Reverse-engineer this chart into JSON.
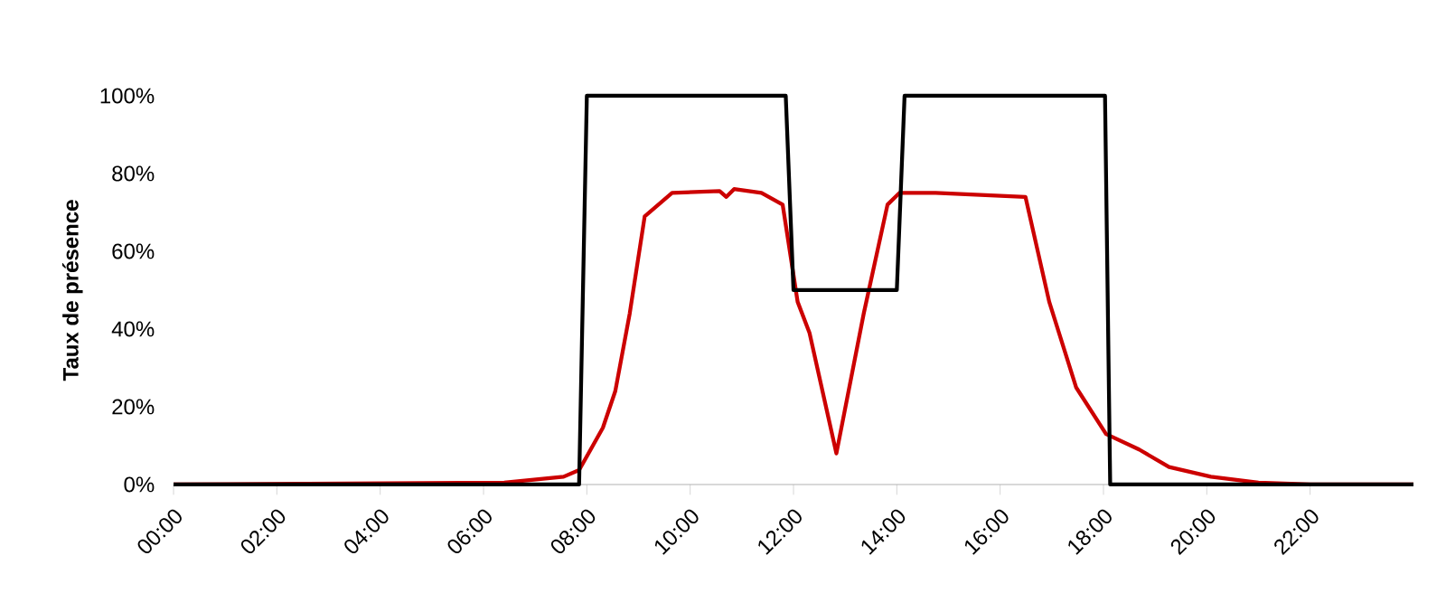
{
  "chart_data": {
    "type": "line",
    "ylabel": "Taux de présence",
    "xlim": [
      0,
      24
    ],
    "xticks": [
      {
        "value": 0,
        "label": "00:00"
      },
      {
        "value": 2,
        "label": "02:00"
      },
      {
        "value": 4,
        "label": "04:00"
      },
      {
        "value": 6,
        "label": "06:00"
      },
      {
        "value": 8,
        "label": "08:00"
      },
      {
        "value": 10,
        "label": "10:00"
      },
      {
        "value": 12,
        "label": "12:00"
      },
      {
        "value": 14,
        "label": "14:00"
      },
      {
        "value": 16,
        "label": "16:00"
      },
      {
        "value": 18,
        "label": "18:00"
      },
      {
        "value": 20,
        "label": "20:00"
      },
      {
        "value": 22,
        "label": "22:00"
      }
    ],
    "ylim": [
      0,
      100
    ],
    "yticks": [
      {
        "value": 0,
        "label": "0%"
      },
      {
        "value": 20,
        "label": "20%"
      },
      {
        "value": 40,
        "label": "40%"
      },
      {
        "value": 60,
        "label": "60%"
      },
      {
        "value": 80,
        "label": "80%"
      },
      {
        "value": 100,
        "label": "100%"
      }
    ],
    "marker": "none",
    "line_style": "solid",
    "series": [
      {
        "color": "#cc0000",
        "x": [
          0,
          6.4,
          7.55,
          7.85,
          8.31,
          8.55,
          8.83,
          9.12,
          9.65,
          10.57,
          10.7,
          10.85,
          11.38,
          11.79,
          12.08,
          12.31,
          12.83,
          13.36,
          13.82,
          14.05,
          14.75,
          16.49,
          16.95,
          17.47,
          18.05,
          18.69,
          19.27,
          20.08,
          21,
          22,
          24
        ],
        "values": [
          0,
          0.5,
          2,
          3.7,
          14.6,
          24,
          44,
          69,
          75,
          75.5,
          74,
          76,
          75,
          72,
          47,
          39,
          8,
          44,
          72,
          75,
          75,
          74,
          47,
          25,
          13,
          9,
          4.5,
          2,
          0.5,
          0,
          0
        ]
      },
      {
        "color": "#000000",
        "x": [
          0,
          7.85,
          8,
          11.85,
          12,
          14,
          14.15,
          18.03,
          18.13,
          24
        ],
        "values": [
          0,
          0,
          100,
          100,
          50,
          50,
          100,
          100,
          0,
          0
        ]
      }
    ]
  }
}
